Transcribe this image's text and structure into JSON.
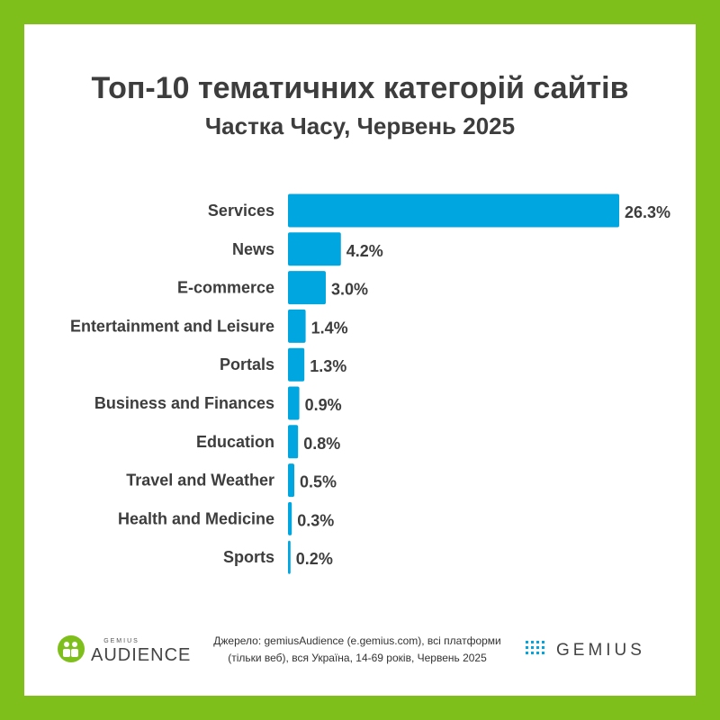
{
  "title": "Топ-10 тематичних категорій сайтів",
  "subtitle": "Частка Часу, Червень 2025",
  "chart_data": {
    "type": "bar",
    "orientation": "horizontal",
    "title": "Топ-10 тематичних категорій сайтів",
    "subtitle": "Частка Часу, Червень 2025",
    "categories": [
      "Services",
      "News",
      "E-commerce",
      "Entertainment and Leisure",
      "Portals",
      "Business and Finances",
      "Education",
      "Travel and Weather",
      "Health and Medicine",
      "Sports"
    ],
    "values": [
      26.3,
      4.2,
      3.0,
      1.4,
      1.3,
      0.9,
      0.8,
      0.5,
      0.3,
      0.2
    ],
    "value_labels": [
      "26.3%",
      "4.2%",
      "3.0%",
      "1.4%",
      "1.3%",
      "0.9%",
      "0.8%",
      "0.5%",
      "0.3%",
      "0.2%"
    ],
    "xlim": [
      0,
      26.3
    ],
    "bar_color": "#00a6e0",
    "grid": false,
    "legend": "none"
  },
  "footer": {
    "source_line1": "Джерело: gemiusAudience (e.gemius.com), всі платформи",
    "source_line2": "(тільки веб), вся Україна, 14-69 років, Червень 2025",
    "logo_left_small": "GEMIUS",
    "logo_left_big": "AUDIENCE",
    "logo_right": "GEMIUS"
  },
  "colors": {
    "frame": "#7fbf1b",
    "bar": "#00a6e0",
    "text": "#3d3d3d"
  }
}
